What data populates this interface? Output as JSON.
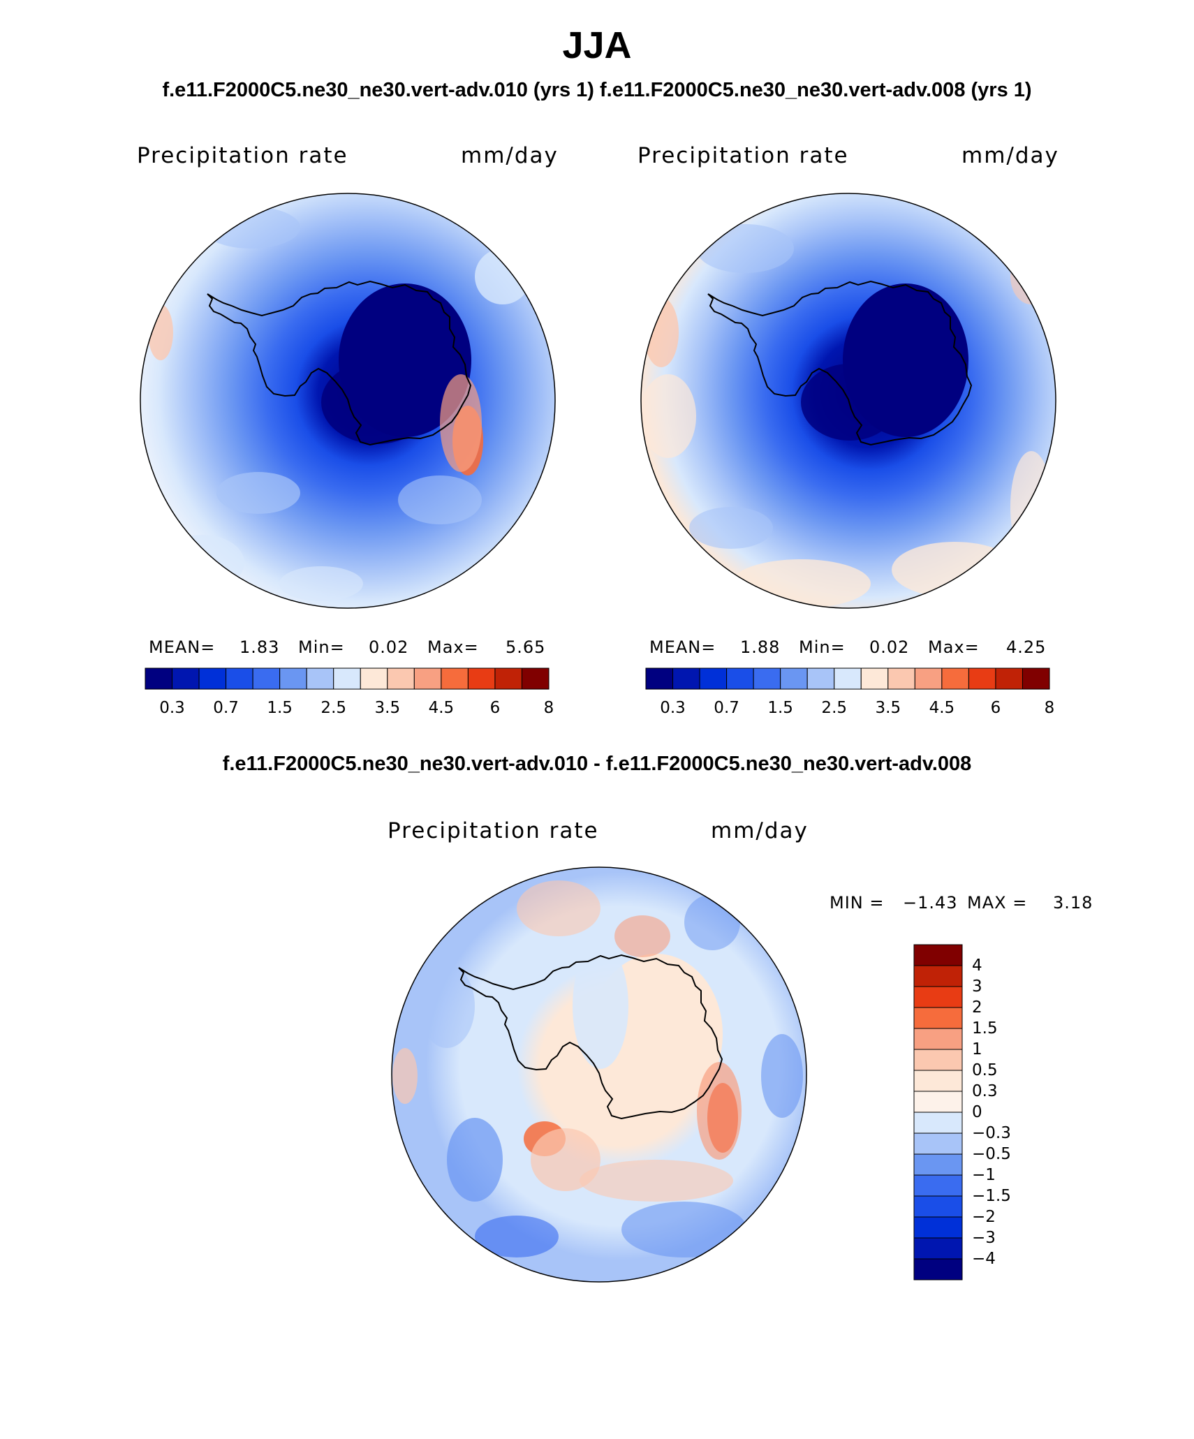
{
  "title": "JJA",
  "subtitle": "f.e11.F2000C5.ne30_ne30.vert-adv.010 (yrs 1)  f.e11.F2000C5.ne30_ne30.vert-adv.008 (yrs 1)",
  "diff_title": "f.e11.F2000C5.ne30_ne30.vert-adv.010 - f.e11.F2000C5.ne30_ne30.vert-adv.008",
  "colors": {
    "abs_scale": [
      "#000080",
      "#0016b0",
      "#0030d8",
      "#1a4ee8",
      "#3a6cf0",
      "#6a96f2",
      "#a8c4f8",
      "#d8e8fc",
      "#fde8d8",
      "#fbc8b0",
      "#f8a082",
      "#f66c3c",
      "#e83c14",
      "#c02206",
      "#800000"
    ],
    "diff_scale": [
      "#000080",
      "#0016b0",
      "#0030d8",
      "#1a4ee8",
      "#3a6cf0",
      "#6a96f2",
      "#a8c4f8",
      "#d8e8fc",
      "#fde8d8",
      "#fbc8b0",
      "#f8a082",
      "#f66c3c",
      "#e83c14",
      "#c02206",
      "#800000"
    ]
  },
  "chart_data": [
    {
      "type": "heatmap",
      "name": "left-map",
      "label": "Precipitation rate",
      "units": "mm/day",
      "stats": {
        "mean_label": "MEAN=",
        "mean": "1.83",
        "min_label": "Min=",
        "min": "0.02",
        "max_label": "Max=",
        "max": "5.65"
      },
      "colorbar_ticks": [
        "0.3",
        "0.7",
        "1.5",
        "2.5",
        "3.5",
        "4.5",
        "6",
        "8"
      ],
      "levels": [
        0.2,
        0.3,
        0.5,
        0.7,
        1,
        1.5,
        2,
        2.5,
        3,
        3.5,
        4,
        4.5,
        5,
        6,
        7,
        8
      ]
    },
    {
      "type": "heatmap",
      "name": "right-map",
      "label": "Precipitation rate",
      "units": "mm/day",
      "stats": {
        "mean_label": "MEAN=",
        "mean": "1.88",
        "min_label": "Min=",
        "min": "0.02",
        "max_label": "Max=",
        "max": "4.25"
      },
      "colorbar_ticks": [
        "0.3",
        "0.7",
        "1.5",
        "2.5",
        "3.5",
        "4.5",
        "6",
        "8"
      ],
      "levels": [
        0.2,
        0.3,
        0.5,
        0.7,
        1,
        1.5,
        2,
        2.5,
        3,
        3.5,
        4,
        4.5,
        5,
        6,
        7,
        8
      ]
    },
    {
      "type": "heatmap",
      "name": "diff-map",
      "label": "Precipitation rate",
      "units": "mm/day",
      "stats": {
        "min_label": "MIN =",
        "min": "−1.43",
        "max_label": "MAX =",
        "max": "3.18"
      },
      "colorbar_ticks": [
        "4",
        "3",
        "2",
        "1.5",
        "1",
        "0.5",
        "0.3",
        "0",
        "−0.3",
        "−0.5",
        "−1",
        "−1.5",
        "−2",
        "−3",
        "−4"
      ],
      "levels": [
        -5,
        -4,
        -3,
        -2,
        -1.5,
        -1,
        -0.5,
        -0.3,
        0,
        0.3,
        0.5,
        1,
        1.5,
        2,
        3,
        4,
        5
      ]
    }
  ]
}
